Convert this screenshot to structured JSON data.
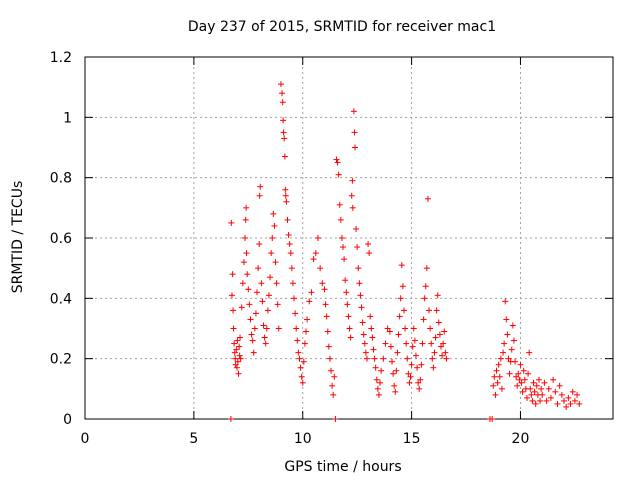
{
  "chart_data": {
    "type": "scatter",
    "title": "Day 237 of 2015, SRMTID for receiver mac1",
    "xlabel": "GPS time / hours",
    "ylabel": "SRMTID / TECUs",
    "xlim": [
      0,
      24.25
    ],
    "ylim": [
      0,
      1.2
    ],
    "xticks": [
      0,
      5,
      10,
      15,
      20
    ],
    "xtick_labels": [
      "0",
      "5",
      "10",
      "15",
      "20"
    ],
    "yticks": [
      0,
      0.2,
      0.4,
      0.6,
      0.8,
      1.0,
      1.2
    ],
    "ytick_labels": [
      "0",
      "0.2",
      "0.4",
      "0.6",
      "0.8",
      "1",
      "1.2"
    ],
    "grid": true,
    "marker": "plus",
    "color": "#ff0000",
    "series": [
      {
        "name": "SRMTID",
        "points": [
          [
            6.7,
            0.0
          ],
          [
            6.72,
            0.65
          ],
          [
            6.75,
            0.41
          ],
          [
            6.78,
            0.48
          ],
          [
            6.8,
            0.36
          ],
          [
            6.82,
            0.3
          ],
          [
            6.85,
            0.25
          ],
          [
            6.88,
            0.22
          ],
          [
            6.9,
            0.2
          ],
          [
            6.92,
            0.18
          ],
          [
            6.95,
            0.23
          ],
          [
            6.98,
            0.17
          ],
          [
            7.0,
            0.26
          ],
          [
            7.02,
            0.19
          ],
          [
            7.05,
            0.15
          ],
          [
            7.08,
            0.24
          ],
          [
            7.1,
            0.21
          ],
          [
            7.12,
            0.27
          ],
          [
            7.15,
            0.2
          ],
          [
            7.2,
            0.37
          ],
          [
            7.25,
            0.45
          ],
          [
            7.3,
            0.52
          ],
          [
            7.35,
            0.6
          ],
          [
            7.38,
            0.66
          ],
          [
            7.4,
            0.7
          ],
          [
            7.42,
            0.55
          ],
          [
            7.45,
            0.48
          ],
          [
            7.5,
            0.43
          ],
          [
            7.55,
            0.38
          ],
          [
            7.6,
            0.33
          ],
          [
            7.65,
            0.28
          ],
          [
            7.7,
            0.26
          ],
          [
            7.75,
            0.22
          ],
          [
            7.8,
            0.3
          ],
          [
            7.85,
            0.35
          ],
          [
            7.9,
            0.42
          ],
          [
            7.95,
            0.5
          ],
          [
            8.0,
            0.58
          ],
          [
            8.02,
            0.74
          ],
          [
            8.05,
            0.77
          ],
          [
            8.1,
            0.45
          ],
          [
            8.15,
            0.39
          ],
          [
            8.2,
            0.31
          ],
          [
            8.25,
            0.27
          ],
          [
            8.3,
            0.25
          ],
          [
            8.35,
            0.3
          ],
          [
            8.4,
            0.36
          ],
          [
            8.45,
            0.41
          ],
          [
            8.5,
            0.47
          ],
          [
            8.55,
            0.55
          ],
          [
            8.6,
            0.6
          ],
          [
            8.65,
            0.68
          ],
          [
            8.7,
            0.64
          ],
          [
            8.75,
            0.52
          ],
          [
            8.8,
            0.45
          ],
          [
            8.85,
            0.38
          ],
          [
            8.9,
            0.3
          ],
          [
            9.0,
            1.11
          ],
          [
            9.05,
            1.08
          ],
          [
            9.08,
            1.05
          ],
          [
            9.1,
            0.99
          ],
          [
            9.12,
            0.95
          ],
          [
            9.15,
            0.93
          ],
          [
            9.18,
            0.87
          ],
          [
            9.2,
            0.76
          ],
          [
            9.22,
            0.74
          ],
          [
            9.25,
            0.72
          ],
          [
            9.3,
            0.66
          ],
          [
            9.35,
            0.61
          ],
          [
            9.4,
            0.58
          ],
          [
            9.45,
            0.55
          ],
          [
            9.5,
            0.5
          ],
          [
            9.55,
            0.45
          ],
          [
            9.6,
            0.4
          ],
          [
            9.65,
            0.35
          ],
          [
            9.7,
            0.3
          ],
          [
            9.75,
            0.26
          ],
          [
            9.8,
            0.22
          ],
          [
            9.85,
            0.2
          ],
          [
            9.9,
            0.17
          ],
          [
            9.95,
            0.14
          ],
          [
            10.0,
            0.12
          ],
          [
            10.05,
            0.19
          ],
          [
            10.1,
            0.25
          ],
          [
            10.15,
            0.29
          ],
          [
            10.2,
            0.33
          ],
          [
            10.3,
            0.39
          ],
          [
            10.4,
            0.42
          ],
          [
            10.5,
            0.53
          ],
          [
            10.6,
            0.55
          ],
          [
            10.7,
            0.6
          ],
          [
            10.8,
            0.5
          ],
          [
            10.9,
            0.45
          ],
          [
            11.0,
            0.43
          ],
          [
            11.05,
            0.38
          ],
          [
            11.1,
            0.34
          ],
          [
            11.15,
            0.29
          ],
          [
            11.2,
            0.24
          ],
          [
            11.25,
            0.2
          ],
          [
            11.3,
            0.16
          ],
          [
            11.35,
            0.11
          ],
          [
            11.4,
            0.08
          ],
          [
            11.45,
            0.14
          ],
          [
            11.5,
            0.0
          ],
          [
            11.55,
            0.86
          ],
          [
            11.6,
            0.85
          ],
          [
            11.65,
            0.81
          ],
          [
            11.7,
            0.71
          ],
          [
            11.75,
            0.66
          ],
          [
            11.8,
            0.6
          ],
          [
            11.85,
            0.57
          ],
          [
            11.9,
            0.53
          ],
          [
            11.95,
            0.46
          ],
          [
            12.0,
            0.42
          ],
          [
            12.05,
            0.38
          ],
          [
            12.1,
            0.34
          ],
          [
            12.15,
            0.3
          ],
          [
            12.2,
            0.27
          ],
          [
            12.25,
            0.74
          ],
          [
            12.28,
            0.79
          ],
          [
            12.3,
            0.7
          ],
          [
            12.35,
            1.02
          ],
          [
            12.38,
            0.95
          ],
          [
            12.4,
            0.9
          ],
          [
            12.45,
            0.63
          ],
          [
            12.5,
            0.57
          ],
          [
            12.55,
            0.5
          ],
          [
            12.6,
            0.45
          ],
          [
            12.65,
            0.41
          ],
          [
            12.7,
            0.37
          ],
          [
            12.75,
            0.32
          ],
          [
            12.8,
            0.28
          ],
          [
            12.85,
            0.25
          ],
          [
            12.9,
            0.22
          ],
          [
            12.95,
            0.2
          ],
          [
            13.0,
            0.58
          ],
          [
            13.05,
            0.55
          ],
          [
            13.1,
            0.34
          ],
          [
            13.15,
            0.3
          ],
          [
            13.2,
            0.27
          ],
          [
            13.25,
            0.23
          ],
          [
            13.3,
            0.2
          ],
          [
            13.35,
            0.17
          ],
          [
            13.4,
            0.13
          ],
          [
            13.45,
            0.1
          ],
          [
            13.5,
            0.08
          ],
          [
            13.55,
            0.12
          ],
          [
            13.6,
            0.16
          ],
          [
            13.7,
            0.2
          ],
          [
            13.8,
            0.25
          ],
          [
            13.9,
            0.3
          ],
          [
            14.0,
            0.29
          ],
          [
            14.05,
            0.24
          ],
          [
            14.1,
            0.19
          ],
          [
            14.15,
            0.15
          ],
          [
            14.2,
            0.11
          ],
          [
            14.25,
            0.09
          ],
          [
            14.3,
            0.16
          ],
          [
            14.35,
            0.22
          ],
          [
            14.4,
            0.28
          ],
          [
            14.45,
            0.34
          ],
          [
            14.5,
            0.4
          ],
          [
            14.55,
            0.51
          ],
          [
            14.6,
            0.44
          ],
          [
            14.65,
            0.36
          ],
          [
            14.7,
            0.3
          ],
          [
            14.75,
            0.25
          ],
          [
            14.8,
            0.2
          ],
          [
            14.85,
            0.15
          ],
          [
            14.9,
            0.12
          ],
          [
            14.95,
            0.14
          ],
          [
            15.0,
            0.18
          ],
          [
            15.05,
            0.24
          ],
          [
            15.1,
            0.3
          ],
          [
            15.15,
            0.26
          ],
          [
            15.2,
            0.21
          ],
          [
            15.25,
            0.17
          ],
          [
            15.3,
            0.12
          ],
          [
            15.35,
            0.1
          ],
          [
            15.4,
            0.13
          ],
          [
            15.45,
            0.18
          ],
          [
            15.5,
            0.25
          ],
          [
            15.55,
            0.33
          ],
          [
            15.6,
            0.4
          ],
          [
            15.65,
            0.44
          ],
          [
            15.7,
            0.5
          ],
          [
            15.75,
            0.73
          ],
          [
            15.8,
            0.36
          ],
          [
            15.85,
            0.3
          ],
          [
            15.9,
            0.25
          ],
          [
            15.95,
            0.2
          ],
          [
            16.0,
            0.17
          ],
          [
            16.05,
            0.22
          ],
          [
            16.1,
            0.27
          ],
          [
            16.15,
            0.36
          ],
          [
            16.2,
            0.41
          ],
          [
            16.25,
            0.32
          ],
          [
            16.3,
            0.28
          ],
          [
            16.35,
            0.24
          ],
          [
            16.4,
            0.21
          ],
          [
            16.45,
            0.25
          ],
          [
            16.5,
            0.29
          ],
          [
            16.55,
            0.22
          ],
          [
            16.6,
            0.2
          ],
          [
            18.6,
            0.0
          ],
          [
            18.7,
            0.0
          ],
          [
            18.75,
            0.11
          ],
          [
            18.8,
            0.14
          ],
          [
            18.85,
            0.08
          ],
          [
            18.9,
            0.16
          ],
          [
            18.95,
            0.12
          ],
          [
            19.0,
            0.18
          ],
          [
            19.05,
            0.14
          ],
          [
            19.1,
            0.2
          ],
          [
            19.15,
            0.1
          ],
          [
            19.2,
            0.22
          ],
          [
            19.25,
            0.25
          ],
          [
            19.3,
            0.39
          ],
          [
            19.35,
            0.33
          ],
          [
            19.4,
            0.28
          ],
          [
            19.45,
            0.2
          ],
          [
            19.5,
            0.15
          ],
          [
            19.55,
            0.19
          ],
          [
            19.6,
            0.23
          ],
          [
            19.65,
            0.31
          ],
          [
            19.7,
            0.26
          ],
          [
            19.75,
            0.19
          ],
          [
            19.8,
            0.14
          ],
          [
            19.85,
            0.11
          ],
          [
            19.9,
            0.15
          ],
          [
            19.95,
            0.13
          ],
          [
            20.0,
            0.18
          ],
          [
            20.05,
            0.12
          ],
          [
            20.1,
            0.09
          ],
          [
            20.15,
            0.16
          ],
          [
            20.2,
            0.13
          ],
          [
            20.25,
            0.1
          ],
          [
            20.3,
            0.07
          ],
          [
            20.35,
            0.15
          ],
          [
            20.4,
            0.22
          ],
          [
            20.45,
            0.1
          ],
          [
            20.5,
            0.08
          ],
          [
            20.55,
            0.06
          ],
          [
            20.6,
            0.12
          ],
          [
            20.65,
            0.09
          ],
          [
            20.7,
            0.05
          ],
          [
            20.75,
            0.11
          ],
          [
            20.8,
            0.08
          ],
          [
            20.85,
            0.13
          ],
          [
            20.9,
            0.06
          ],
          [
            20.95,
            0.1
          ],
          [
            21.0,
            0.08
          ],
          [
            21.1,
            0.12
          ],
          [
            21.2,
            0.06
          ],
          [
            21.3,
            0.1
          ],
          [
            21.4,
            0.07
          ],
          [
            21.5,
            0.13
          ],
          [
            21.6,
            0.09
          ],
          [
            21.7,
            0.05
          ],
          [
            21.8,
            0.11
          ],
          [
            21.9,
            0.08
          ],
          [
            22.0,
            0.06
          ],
          [
            22.1,
            0.04
          ],
          [
            22.2,
            0.07
          ],
          [
            22.3,
            0.05
          ],
          [
            22.4,
            0.09
          ],
          [
            22.5,
            0.06
          ],
          [
            22.6,
            0.08
          ],
          [
            22.7,
            0.05
          ]
        ]
      }
    ]
  }
}
